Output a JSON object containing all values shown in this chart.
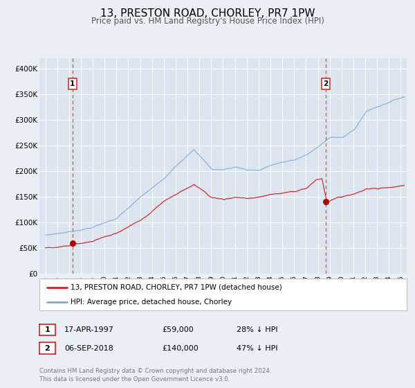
{
  "title": "13, PRESTON ROAD, CHORLEY, PR7 1PW",
  "subtitle": "Price paid vs. HM Land Registry's House Price Index (HPI)",
  "title_fontsize": 11,
  "subtitle_fontsize": 8.5,
  "xlim": [
    1994.5,
    2025.5
  ],
  "ylim": [
    0,
    420000
  ],
  "yticks": [
    0,
    50000,
    100000,
    150000,
    200000,
    250000,
    300000,
    350000,
    400000
  ],
  "ytick_labels": [
    "£0",
    "£50K",
    "£100K",
    "£150K",
    "£200K",
    "£250K",
    "£300K",
    "£350K",
    "£400K"
  ],
  "xticks": [
    1995,
    1996,
    1997,
    1998,
    1999,
    2000,
    2001,
    2002,
    2003,
    2004,
    2005,
    2006,
    2007,
    2008,
    2009,
    2010,
    2011,
    2012,
    2013,
    2014,
    2015,
    2016,
    2017,
    2018,
    2019,
    2020,
    2021,
    2022,
    2023,
    2024,
    2025
  ],
  "hpi_color": "#7aaed6",
  "price_color": "#cc2222",
  "marker_color": "#aa0000",
  "vline_color": "#ee4444",
  "background_color": "#eaeff5",
  "plot_bg_color": "#dce5ef",
  "grid_color": "#ffffff",
  "legend_label_red": "13, PRESTON ROAD, CHORLEY, PR7 1PW (detached house)",
  "legend_label_blue": "HPI: Average price, detached house, Chorley",
  "transaction1_date": 1997.29,
  "transaction1_price": 59000,
  "transaction1_label": "17-APR-1997",
  "transaction1_pct": "28% ↓ HPI",
  "transaction2_date": 2018.68,
  "transaction2_price": 140000,
  "transaction2_label": "06-SEP-2018",
  "transaction2_pct": "47% ↓ HPI",
  "footnote": "Contains HM Land Registry data © Crown copyright and database right 2024.\nThis data is licensed under the Open Government Licence v3.0."
}
